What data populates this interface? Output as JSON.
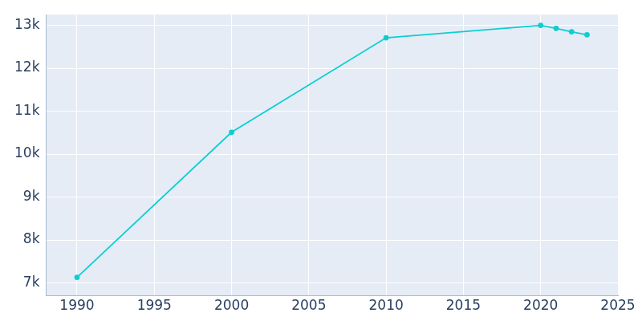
{
  "chart_data": {
    "type": "line",
    "x": [
      1990,
      2000,
      2010,
      2020,
      2021,
      2022,
      2023
    ],
    "values": [
      7130,
      10510,
      12710,
      13000,
      12930,
      12850,
      12780
    ],
    "color": "#0bcfd0",
    "marker": "circle",
    "xlim": [
      1988,
      2025
    ],
    "xticks": [
      1990,
      1995,
      2000,
      2005,
      2010,
      2015,
      2020,
      2025
    ],
    "ylim": [
      6700,
      13250
    ],
    "yticks": [
      {
        "value": 7000,
        "label": "7k"
      },
      {
        "value": 8000,
        "label": "8k"
      },
      {
        "value": 9000,
        "label": "9k"
      },
      {
        "value": 10000,
        "label": "10k"
      },
      {
        "value": 11000,
        "label": "11k"
      },
      {
        "value": 12000,
        "label": "12k"
      },
      {
        "value": 13000,
        "label": "13k"
      }
    ],
    "grid": true
  }
}
